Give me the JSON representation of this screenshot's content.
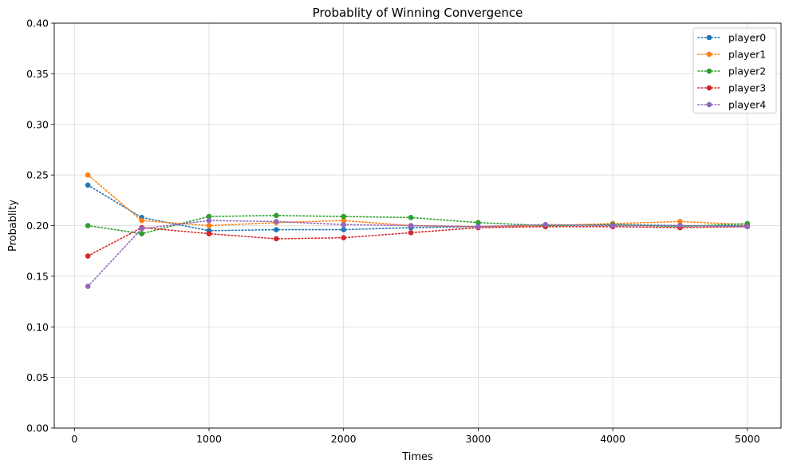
{
  "chart_data": {
    "type": "line",
    "title": "Probablity of Winning Convergence",
    "xlabel": "Times",
    "ylabel": "Probablity",
    "xlim": [
      -150,
      5250
    ],
    "ylim": [
      0,
      0.4
    ],
    "x_ticks": [
      0,
      1000,
      2000,
      3000,
      4000,
      5000
    ],
    "y_ticks": [
      0.0,
      0.05,
      0.1,
      0.15,
      0.2,
      0.25,
      0.3,
      0.35,
      0.4
    ],
    "x_tick_labels": [
      "0",
      "1000",
      "2000",
      "3000",
      "4000",
      "5000"
    ],
    "y_tick_labels": [
      "0.00",
      "0.05",
      "0.10",
      "0.15",
      "0.20",
      "0.25",
      "0.30",
      "0.35",
      "0.40"
    ],
    "grid": true,
    "legend_position": "top-right",
    "x": [
      100,
      500,
      1000,
      1500,
      2000,
      2500,
      3000,
      3500,
      4000,
      4500,
      5000
    ],
    "series": [
      {
        "name": "player0",
        "color": "#1f77b4",
        "values": [
          0.24,
          0.208,
          0.195,
          0.196,
          0.196,
          0.198,
          0.199,
          0.2,
          0.201,
          0.2,
          0.2
        ]
      },
      {
        "name": "player1",
        "color": "#ff7f0e",
        "values": [
          0.25,
          0.205,
          0.2,
          0.203,
          0.205,
          0.2,
          0.199,
          0.2,
          0.202,
          0.204,
          0.201
        ]
      },
      {
        "name": "player2",
        "color": "#2ca02c",
        "values": [
          0.2,
          0.192,
          0.209,
          0.21,
          0.209,
          0.208,
          0.203,
          0.2,
          0.201,
          0.199,
          0.202
        ]
      },
      {
        "name": "player3",
        "color": "#d62728",
        "values": [
          0.17,
          0.198,
          0.192,
          0.187,
          0.188,
          0.193,
          0.198,
          0.199,
          0.199,
          0.198,
          0.199
        ]
      },
      {
        "name": "player4",
        "color": "#9467bd",
        "values": [
          0.14,
          0.197,
          0.205,
          0.204,
          0.201,
          0.2,
          0.199,
          0.201,
          0.2,
          0.2,
          0.199
        ]
      }
    ]
  }
}
